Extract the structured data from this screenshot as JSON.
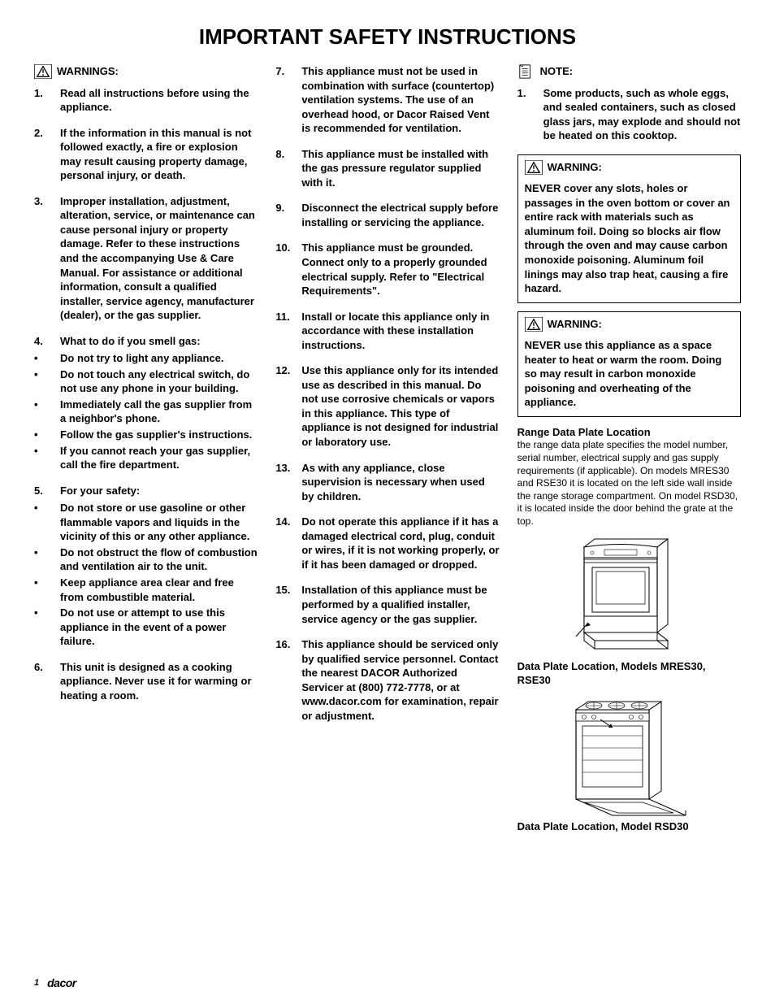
{
  "page": {
    "title": "IMPORTANT SAFETY INSTRUCTIONS",
    "pageNumber": "1",
    "brand": "dacor"
  },
  "colors": {
    "text": "#000000",
    "background": "#ffffff",
    "rule": "#000000"
  },
  "typography": {
    "title_fontsize": 26,
    "body_fontsize": 13,
    "caption_fontsize": 13,
    "small_fontsize": 12,
    "footer_fontsize": 11,
    "font_family": "Arial"
  },
  "col1": {
    "header": {
      "icon": "warning-triangle",
      "label": "WARNINGS:"
    },
    "items": [
      {
        "n": 1,
        "text": "Read all instructions before using the appliance."
      },
      {
        "n": 2,
        "text": "If the information in this manual is not followed exactly, a fire or explosion may result causing property damage, personal injury, or death."
      },
      {
        "n": 3,
        "text": "Improper installation, adjustment, alteration, service, or maintenance can cause personal injury or property damage. Refer to these instructions and the accompanying Use & Care Manual. For assistance or additional information, consult a qualified installer, service agency, manufacturer (dealer), or the gas supplier."
      },
      {
        "n": 4,
        "text": "What to do if you smell gas:",
        "sub": [
          "Do not try to light any appliance.",
          "Do not touch any electrical switch, do not use any phone in your building.",
          "Immediately call the gas supplier from a neighbor's phone.",
          "Follow the gas supplier's instructions.",
          "If you cannot reach your gas supplier, call the fire department."
        ]
      },
      {
        "n": 5,
        "text": "For your safety:",
        "sub": [
          "Do not store or use gasoline or other flammable vapors and liquids in the vicinity of this or any other appliance.",
          "Do not obstruct the flow of combustion and ventilation air to the unit.",
          "Keep appliance area clear and free from combustible material.",
          "Do not use or attempt to use this appliance in the event of a power failure."
        ]
      },
      {
        "n": 6,
        "text": "This unit is designed as a cooking appliance. Never use it for warming or heating a room."
      }
    ]
  },
  "col2": {
    "start": 7,
    "items": [
      {
        "n": 7,
        "text": "This appliance must not be used in combination with surface (countertop) ventilation systems.  The use of an overhead hood, or Dacor Raised Vent is recommended for ventilation."
      },
      {
        "n": 8,
        "text": "This appliance must be installed with the gas pressure regulator supplied with it."
      },
      {
        "n": 9,
        "text": "Disconnect the electrical supply before installing or servicing the appliance."
      },
      {
        "n": 10,
        "text": "This appliance must be grounded. Connect only to a properly grounded electrical supply. Refer to \"Electrical Requirements\"."
      },
      {
        "n": 11,
        "text": "Install or locate this appliance only in accordance with these installation instructions."
      },
      {
        "n": 12,
        "text": "Use this appliance only for its intended use as described in this manual. Do not use corrosive chemicals or vapors in this appliance. This type of appliance is not designed for industrial or laboratory use."
      },
      {
        "n": 13,
        "text": "As with any appliance, close supervision is necessary when used by children."
      },
      {
        "n": 14,
        "text": "Do not operate this appliance if it has a damaged electrical cord, plug, conduit or wires, if it is not working properly, or if it has been damaged or dropped."
      },
      {
        "n": 15,
        "text": "Installation of this appliance must be performed by a qualified installer, service agency or the gas supplier."
      },
      {
        "n": 16,
        "text": "This appliance should be serviced only by qualified service personnel. Contact the nearest DACOR Authorized Servicer at (800) 772-7778, or at www.dacor.com for examination, repair or adjustment."
      }
    ]
  },
  "col3": {
    "note": {
      "icon": "note-page",
      "label": "NOTE:",
      "items": [
        {
          "n": 1,
          "text": "Some products, such as whole eggs, and sealed containers, such as closed glass jars, may explode and should not be heated on this cooktop."
        }
      ]
    },
    "warning1": {
      "icon": "warning-triangle",
      "label": "WARNING:",
      "body": "NEVER cover any slots, holes or passages in the oven bottom or cover an entire rack with materials such as aluminum foil.  Doing so blocks air flow through the oven and may cause carbon monoxide poisoning.  Aluminum foil linings may also trap heat, causing a fire hazard."
    },
    "warning2": {
      "icon": "warning-triangle",
      "label": "WARNING:",
      "body": "NEVER use this appliance as a space heater to heat or warm the room.  Doing so may result in carbon monoxide poisoning and overheating of the appliance."
    },
    "dataPlate": {
      "head": "Range Data Plate Location",
      "body": "the range data plate specifies the model number, serial number, electrical supply and gas supply requirements (if applicable). On models MRES30 and RSE30 it is located on the left side wall inside the range storage compartment. On model RSD30, it is located inside the door behind the grate at the top."
    },
    "fig1_caption": "Data Plate Location, Models MRES30, RSE30",
    "fig2_caption": "Data Plate Location, Model RSD30"
  }
}
